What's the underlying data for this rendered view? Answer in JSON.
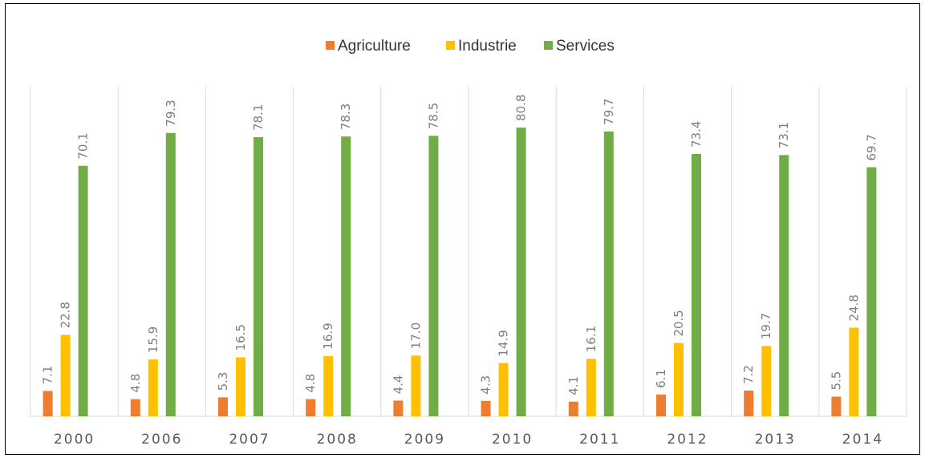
{
  "chart_data": {
    "type": "bar",
    "categories": [
      "2000",
      "2006",
      "2007",
      "2008",
      "2009",
      "2010",
      "2011",
      "2012",
      "2013",
      "2014"
    ],
    "series": [
      {
        "name": "Agriculture",
        "color": "#ed7d31",
        "values": [
          7.1,
          4.8,
          5.3,
          4.8,
          4.4,
          4.3,
          4.1,
          6.1,
          7.2,
          5.5
        ]
      },
      {
        "name": "Industrie",
        "color": "#ffc000",
        "values": [
          22.8,
          15.9,
          16.5,
          16.9,
          17.0,
          14.9,
          16.1,
          20.5,
          19.7,
          24.8
        ]
      },
      {
        "name": "Services",
        "color": "#70ad47",
        "values": [
          70.1,
          79.3,
          78.1,
          78.3,
          78.5,
          80.8,
          79.7,
          73.4,
          73.1,
          69.7
        ]
      }
    ],
    "labels": [
      [
        "7.1",
        "4.8",
        "5.3",
        "4.8",
        "4.4",
        "4.3",
        "4.1",
        "6.1",
        "7.2",
        "5.5"
      ],
      [
        "22.8",
        "15.9",
        "16.5",
        "16.9",
        "17.0",
        "14.9",
        "16.1",
        "20.5",
        "19.7",
        "24.8"
      ],
      [
        "70.1",
        "79.3",
        "78.1",
        "78.3",
        "78.5",
        "80.8",
        "79.7",
        "73.4",
        "73.1",
        "69.7"
      ]
    ],
    "legend_position": "top",
    "grid": "vertical category separators",
    "ylim": [
      0,
      100
    ]
  }
}
